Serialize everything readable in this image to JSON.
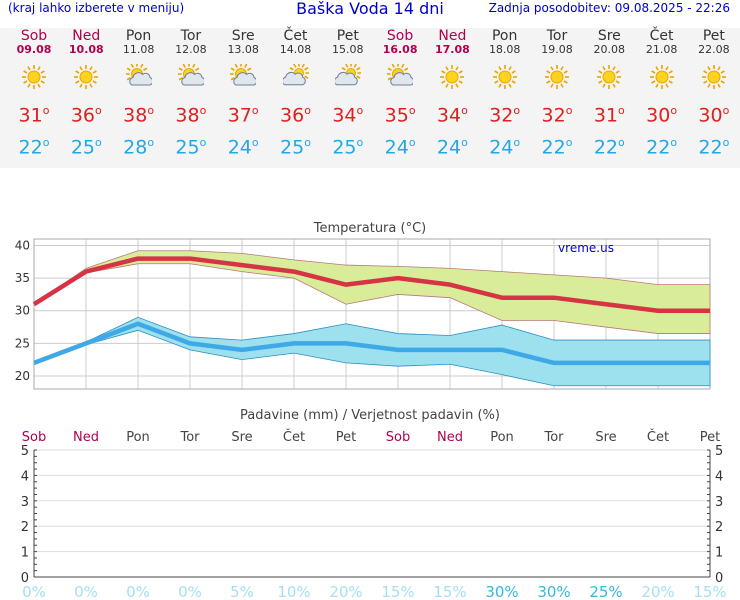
{
  "header": {
    "menu_hint": "(kraj lahko izberete v meniju)",
    "title": "Baška Voda 14 dni",
    "updated": "Zadnja posodobitev: 09.08.2025 - 22:26"
  },
  "days": [
    {
      "name": "Sob",
      "date": "09.08",
      "weekend": true,
      "icon": "sun-icon",
      "tmax": "31",
      "tmin": "22"
    },
    {
      "name": "Ned",
      "date": "10.08",
      "weekend": true,
      "icon": "sun-icon",
      "tmax": "36",
      "tmin": "25"
    },
    {
      "name": "Pon",
      "date": "11.08",
      "weekend": false,
      "icon": "sun-cloud-icon",
      "tmax": "38",
      "tmin": "28"
    },
    {
      "name": "Tor",
      "date": "12.08",
      "weekend": false,
      "icon": "sun-cloud-icon",
      "tmax": "38",
      "tmin": "25"
    },
    {
      "name": "Sre",
      "date": "13.08",
      "weekend": false,
      "icon": "sun-cloud-icon",
      "tmax": "37",
      "tmin": "24"
    },
    {
      "name": "Čet",
      "date": "14.08",
      "weekend": false,
      "icon": "cloud-sun-icon",
      "tmax": "36",
      "tmin": "25"
    },
    {
      "name": "Pet",
      "date": "15.08",
      "weekend": false,
      "icon": "cloud-sun-icon",
      "tmax": "34",
      "tmin": "25"
    },
    {
      "name": "Sob",
      "date": "16.08",
      "weekend": true,
      "icon": "sun-cloud-icon",
      "tmax": "35",
      "tmin": "24"
    },
    {
      "name": "Ned",
      "date": "17.08",
      "weekend": true,
      "icon": "sun-icon",
      "tmax": "34",
      "tmin": "24"
    },
    {
      "name": "Pon",
      "date": "18.08",
      "weekend": false,
      "icon": "sun-icon",
      "tmax": "32",
      "tmin": "24"
    },
    {
      "name": "Tor",
      "date": "19.08",
      "weekend": false,
      "icon": "sun-icon",
      "tmax": "32",
      "tmin": "22"
    },
    {
      "name": "Sre",
      "date": "20.08",
      "weekend": false,
      "icon": "sun-icon",
      "tmax": "31",
      "tmin": "22"
    },
    {
      "name": "Čet",
      "date": "21.08",
      "weekend": false,
      "icon": "sun-icon",
      "tmax": "30",
      "tmin": "22"
    },
    {
      "name": "Pet",
      "date": "22.08",
      "weekend": false,
      "icon": "sun-icon",
      "tmax": "30",
      "tmin": "22"
    }
  ],
  "colors": {
    "weekend": "#b0004e",
    "max": "#d63344",
    "min": "#3fa8e6",
    "max_band": "#d8ec9a",
    "min_band": "#9de0ee",
    "link": "#0000cc"
  },
  "chart_data": [
    {
      "type": "line",
      "title": "Temperatura (°C)",
      "watermark": "vreme.us",
      "x": [
        "09.08",
        "10.08",
        "11.08",
        "12.08",
        "13.08",
        "14.08",
        "15.08",
        "16.08",
        "17.08",
        "18.08",
        "19.08",
        "20.08",
        "21.08",
        "22.08"
      ],
      "ylim": [
        18,
        41
      ],
      "yticks": [
        20,
        25,
        30,
        35,
        40
      ],
      "series": [
        {
          "role": "max",
          "values": [
            31,
            36,
            38,
            38,
            37,
            36,
            34,
            35,
            34,
            32,
            32,
            31,
            30,
            30
          ]
        },
        {
          "role": "max_upper",
          "values": [
            31,
            36.5,
            39.2,
            39.2,
            38.8,
            37.8,
            37,
            36.8,
            36.5,
            36,
            35.5,
            35,
            34,
            34
          ]
        },
        {
          "role": "max_lower",
          "values": [
            31,
            35.8,
            37.2,
            37.2,
            36,
            35,
            31,
            32.5,
            32,
            28.5,
            28.5,
            27.5,
            26.5,
            26.5
          ]
        },
        {
          "role": "min",
          "values": [
            22,
            25,
            28,
            25,
            24,
            25,
            25,
            24,
            24,
            24,
            22,
            22,
            22,
            22
          ]
        },
        {
          "role": "min_upper",
          "values": [
            22,
            25.2,
            29,
            26,
            25.5,
            26.5,
            28,
            26.5,
            26.2,
            27.8,
            25.5,
            25.5,
            25.5,
            25.5
          ]
        },
        {
          "role": "min_lower",
          "values": [
            22,
            24.8,
            27,
            24,
            22.5,
            23.5,
            22,
            21.5,
            21.8,
            20.2,
            18.5,
            18.5,
            18.5,
            18.5
          ]
        }
      ]
    },
    {
      "type": "bar",
      "title": "Padavine (mm) / Verjetnost padavin (%)",
      "categories": [
        "Sob",
        "Ned",
        "Pon",
        "Tor",
        "Sre",
        "Čet",
        "Pet",
        "Sob",
        "Ned",
        "Pon",
        "Tor",
        "Sre",
        "Čet",
        "Pet"
      ],
      "weekend": [
        true,
        true,
        false,
        false,
        false,
        false,
        false,
        true,
        true,
        false,
        false,
        false,
        false,
        false
      ],
      "values": [
        0,
        0,
        0,
        0,
        0,
        0,
        0,
        0,
        0,
        0,
        0,
        0,
        0,
        0
      ],
      "probability": [
        "0%",
        "0%",
        "0%",
        "0%",
        "5%",
        "10%",
        "20%",
        "15%",
        "15%",
        "30%",
        "30%",
        "25%",
        "20%",
        "15%"
      ],
      "ylim": [
        0,
        5
      ],
      "yticks": [
        0,
        1,
        2,
        3,
        4,
        5
      ]
    }
  ]
}
